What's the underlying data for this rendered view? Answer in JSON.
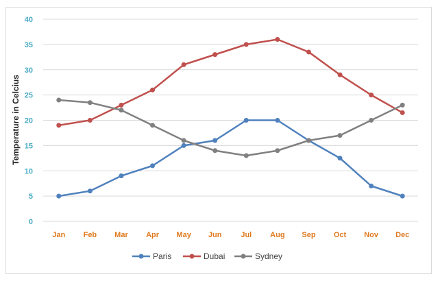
{
  "chart_data": {
    "type": "line",
    "title": "",
    "xlabel": "",
    "ylabel": "Temperature in Celcius",
    "ylim": [
      0,
      40
    ],
    "yticks": [
      0,
      5,
      10,
      15,
      20,
      25,
      30,
      35,
      40
    ],
    "grid": "horizontal",
    "legend_position": "bottom",
    "categories": [
      "Jan",
      "Feb",
      "Mar",
      "Apr",
      "May",
      "Jun",
      "Jul",
      "Aug",
      "Sep",
      "Oct",
      "Nov",
      "Dec"
    ],
    "series": [
      {
        "name": "Paris",
        "color": "#4f81bd",
        "values": [
          5,
          6,
          9,
          11,
          15,
          16,
          20,
          20,
          16,
          12.5,
          7,
          5
        ]
      },
      {
        "name": "Dubai",
        "color": "#c0504d",
        "values": [
          19,
          20,
          23,
          26,
          31,
          33,
          35,
          36,
          33.5,
          29,
          25,
          21.5
        ]
      },
      {
        "name": "Sydney",
        "color": "#808080",
        "values": [
          24,
          23.5,
          22,
          19,
          16,
          14,
          13,
          14,
          16,
          17,
          20,
          23
        ]
      }
    ]
  }
}
